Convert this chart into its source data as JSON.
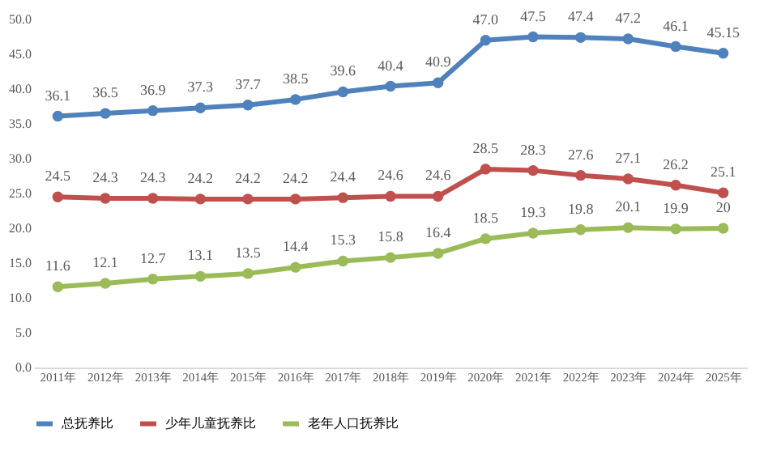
{
  "chart_data": {
    "type": "line",
    "categories": [
      "2011年",
      "2012年",
      "2013年",
      "2014年",
      "2015年",
      "2016年",
      "2017年",
      "2018年",
      "2019年",
      "2020年",
      "2021年",
      "2022年",
      "2023年",
      "2024年",
      "2025年"
    ],
    "series": [
      {
        "name": "总抚养比",
        "color": "#4f81bd",
        "values": [
          36.1,
          36.5,
          36.9,
          37.3,
          37.7,
          38.5,
          39.6,
          40.4,
          40.9,
          47.0,
          47.5,
          47.4,
          47.2,
          46.1,
          45.15
        ],
        "value_labels": [
          "36.1",
          "36.5",
          "36.9",
          "37.3",
          "37.7",
          "38.5",
          "39.6",
          "40.4",
          "40.9",
          "47.0",
          "47.5",
          "47.4",
          "47.2",
          "46.1",
          "45.15"
        ]
      },
      {
        "name": "少年儿童抚养比",
        "color": "#c0504d",
        "values": [
          24.5,
          24.3,
          24.3,
          24.2,
          24.2,
          24.2,
          24.4,
          24.6,
          24.6,
          28.5,
          28.3,
          27.6,
          27.1,
          26.2,
          25.1
        ],
        "value_labels": [
          "24.5",
          "24.3",
          "24.3",
          "24.2",
          "24.2",
          "24.2",
          "24.4",
          "24.6",
          "24.6",
          "28.5",
          "28.3",
          "27.6",
          "27.1",
          "26.2",
          "25.1"
        ]
      },
      {
        "name": "老年人口抚养比",
        "color": "#9bbb59",
        "values": [
          11.6,
          12.1,
          12.7,
          13.1,
          13.5,
          14.4,
          15.3,
          15.8,
          16.4,
          18.5,
          19.3,
          19.8,
          20.1,
          19.9,
          20
        ],
        "value_labels": [
          "11.6",
          "12.1",
          "12.7",
          "13.1",
          "13.5",
          "14.4",
          "15.3",
          "15.8",
          "16.4",
          "18.5",
          "19.3",
          "19.8",
          "20.1",
          "19.9",
          "20"
        ]
      }
    ],
    "ylim": [
      0,
      50
    ],
    "yticks": [
      {
        "value": 0,
        "label": "0.0"
      },
      {
        "value": 5,
        "label": "5.0"
      },
      {
        "value": 10,
        "label": "10.0"
      },
      {
        "value": 15,
        "label": "15.0"
      },
      {
        "value": 20,
        "label": "20.0"
      },
      {
        "value": 25,
        "label": "25.0"
      },
      {
        "value": 30,
        "label": "30.0"
      },
      {
        "value": 35,
        "label": "35.0"
      },
      {
        "value": 40,
        "label": "40.0"
      },
      {
        "value": 45,
        "label": "45.0"
      },
      {
        "value": 50,
        "label": "50.0"
      }
    ],
    "grid": false,
    "legend": "bottom",
    "marker": "circle",
    "line_style": "solid"
  }
}
